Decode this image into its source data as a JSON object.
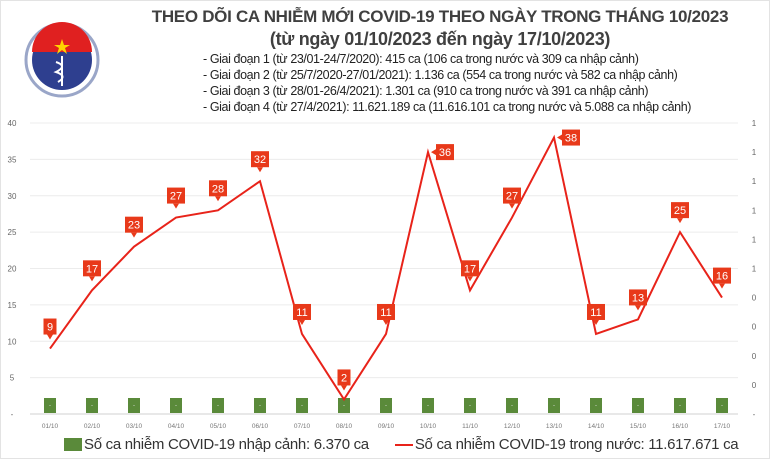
{
  "logo": {
    "text_top": "BỘ Y TẾ",
    "text_bottom": "MINISTRY OF HEALTH"
  },
  "title_line1": "THEO DÕI CA NHIỄM MỚI COVID-19 THEO NGÀY TRONG THÁNG 10/2023",
  "title_line2": "(từ ngày 01/10/2023 đến ngày 17/10/2023)",
  "notes": [
    "- Giai đoạn 1 (từ 23/01-24/7/2020): 415 ca (106 ca trong nước và 309 ca nhập cảnh)",
    "- Giai đoạn 2 (từ 25/7/2020-27/01/2021): 1.136 ca (554 ca trong nước và 582 ca nhập cảnh)",
    "- Giai đoạn 3 (từ 28/01-26/4/2021): 1.301 ca (910 ca trong nước và 391 ca nhập cảnh)",
    "- Giai đoạn 4 (từ 27/4/2021): 11.621.189 ca (11.616.101 ca trong nước và 5.088 ca nhập cảnh)"
  ],
  "chart_data": {
    "type": "bar+line",
    "categories": [
      "01/10",
      "02/10",
      "03/10",
      "04/10",
      "05/10",
      "06/10",
      "07/10",
      "08/10",
      "09/10",
      "10/10",
      "11/10",
      "12/10",
      "13/10",
      "14/10",
      "15/10",
      "16/10",
      "17/10"
    ],
    "series": [
      {
        "name": "Số ca nhiễm COVID-19 nhập cảnh: 6.370 ca",
        "type": "bar",
        "axis": "right",
        "values": [
          0,
          0,
          0,
          0,
          0,
          0,
          0,
          0,
          0,
          0,
          0,
          0,
          0,
          0,
          0,
          0,
          0
        ],
        "data_labels": [
          "-",
          "-",
          "-",
          "-",
          "-",
          "-",
          "-",
          "-",
          "-",
          "-",
          "-",
          "-",
          "-",
          "-",
          "-",
          "-",
          "-"
        ],
        "color": "#5a8a3a"
      },
      {
        "name": "Số ca nhiễm COVID-19 trong nước: 11.617.671 ca",
        "type": "line",
        "axis": "left",
        "values": [
          9,
          17,
          23,
          27,
          28,
          32,
          11,
          2,
          11,
          36,
          17,
          27,
          38,
          11,
          13,
          25,
          16
        ],
        "color": "#e8231a"
      }
    ],
    "left_axis": {
      "ylim": [
        0,
        40
      ],
      "ticks": [
        "-",
        "5",
        "10",
        "15",
        "20",
        "25",
        "30",
        "35",
        "40"
      ]
    },
    "right_axis": {
      "ticks": [
        "-",
        "0",
        "0",
        "0",
        "0",
        "1",
        "1",
        "1",
        "1",
        "1",
        "1"
      ]
    },
    "grid": true,
    "legend": "bottom"
  }
}
